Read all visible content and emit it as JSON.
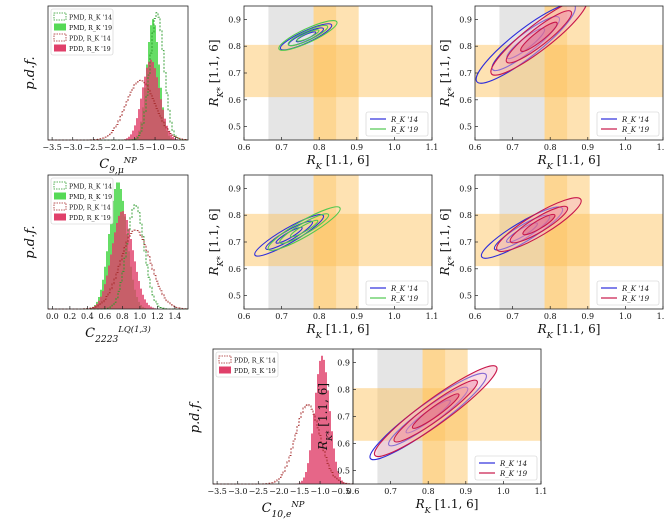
{
  "figure": {
    "hist_ylabel": "p.d.f.",
    "legend": {
      "pmd14": "PMD, R_K '14",
      "pmd19": "PMD, R_K '19",
      "pdd14": "PDD, R_K '14",
      "pdd19": "PDD, R_K '19",
      "rk14": "R_K '14",
      "rk19": "R_K '19"
    },
    "colors": {
      "pmd_green_fill": "#55d955",
      "pmd_green_line": "#2a9a2a",
      "pdd_red_fill": "#e0406a",
      "pdd_red_line": "#a52a2a",
      "contour_blue": "#2d2ddb",
      "contour_green": "#50c850",
      "contour_crimson": "#c8174a",
      "band_orange": "#fdbf55",
      "band_gray": "#cfcfcf"
    }
  },
  "chart_data": [
    {
      "type": "area",
      "xlabel": "C_{9,μ}^{NP}",
      "ylabel": "p.d.f.",
      "xticks": [
        "−3.5",
        "−3.0",
        "−2.5",
        "−2.0",
        "−1.5",
        "−1.0",
        "−0.5"
      ],
      "xlim": [
        -3.6,
        -0.2
      ],
      "series": [
        {
          "name": "PMD, R_K '14",
          "style": "dashed-step",
          "mean": -0.95,
          "sd": 0.17,
          "peak": 1.0
        },
        {
          "name": "PMD, R_K '19",
          "style": "filled",
          "mean": -1.05,
          "sd": 0.15,
          "peak": 0.95
        },
        {
          "name": "PDD, R_K '14",
          "style": "dashed-step",
          "mean": -1.35,
          "sd": 0.35,
          "peak": 0.47
        },
        {
          "name": "PDD, R_K '19",
          "style": "filled",
          "mean": -1.1,
          "sd": 0.21,
          "peak": 0.63
        }
      ]
    },
    {
      "type": "scatter",
      "xlabel": "R_K [1.1, 6]",
      "ylabel": "R_K* [1.1, 6]",
      "xlim": [
        0.6,
        1.1
      ],
      "ylim": [
        0.45,
        0.95
      ],
      "xticks": [
        "0.6",
        "0.7",
        "0.8",
        "0.9",
        "1.0",
        "1.1"
      ],
      "yticks": [
        "0.5",
        "0.6",
        "0.7",
        "0.8",
        "0.9"
      ],
      "legend": "bottom-right",
      "series": [
        {
          "name": "R_K '14",
          "cx": 0.765,
          "cy": 0.835,
          "a": 0.075,
          "b": 0.012,
          "angle_deg": 25
        },
        {
          "name": "R_K '19",
          "cx": 0.77,
          "cy": 0.84,
          "a": 0.085,
          "b": 0.014,
          "angle_deg": 25
        }
      ]
    },
    {
      "type": "scatter",
      "xlabel": "R_K [1.1, 6]",
      "ylabel": "R_K* [1.1, 6]",
      "xlim": [
        0.6,
        1.1
      ],
      "ylim": [
        0.45,
        0.95
      ],
      "xticks": [
        "0.6",
        "0.7",
        "0.8",
        "0.9",
        "1.0",
        "1.1"
      ],
      "yticks": [
        "0.5",
        "0.6",
        "0.7",
        "0.8",
        "0.9"
      ],
      "legend": "bottom-right",
      "series": [
        {
          "name": "R_K '14",
          "cx": 0.735,
          "cy": 0.81,
          "a": 0.165,
          "b": 0.028,
          "angle_deg": 38
        },
        {
          "name": "R_K '19",
          "cx": 0.77,
          "cy": 0.835,
          "a": 0.16,
          "b": 0.026,
          "angle_deg": 38
        }
      ]
    },
    {
      "type": "area",
      "xlabel": "C_{2223}^{LQ^{(1,3)}}",
      "ylabel": "p.d.f.",
      "xticks": [
        "0.0",
        "0.2",
        "0.4",
        "0.6",
        "0.8",
        "1.0",
        "1.2",
        "1.4"
      ],
      "xlim": [
        -0.05,
        1.55
      ],
      "series": [
        {
          "name": "PMD, R_K '14",
          "style": "dashed-step",
          "mean": 0.95,
          "sd": 0.1,
          "peak": 0.82
        },
        {
          "name": "PMD, R_K '19",
          "style": "filled",
          "mean": 0.75,
          "sd": 0.1,
          "peak": 1.0
        },
        {
          "name": "PDD, R_K '14",
          "style": "dashed-step",
          "mean": 0.95,
          "sd": 0.17,
          "peak": 0.62
        },
        {
          "name": "PDD, R_K '19",
          "style": "filled",
          "mean": 0.8,
          "sd": 0.12,
          "peak": 0.77
        }
      ]
    },
    {
      "type": "scatter",
      "xlabel": "R_K [1.1, 6]",
      "ylabel": "R_K* [1.1, 6]",
      "xlim": [
        0.6,
        1.1
      ],
      "ylim": [
        0.45,
        0.95
      ],
      "xticks": [
        "0.6",
        "0.7",
        "0.8",
        "0.9",
        "1.0",
        "1.1"
      ],
      "yticks": [
        "0.5",
        "0.6",
        "0.7",
        "0.8",
        "0.9"
      ],
      "legend": "bottom-right",
      "series": [
        {
          "name": "R_K '14",
          "cx": 0.72,
          "cy": 0.725,
          "a": 0.105,
          "b": 0.015,
          "angle_deg": 30
        },
        {
          "name": "R_K '19",
          "cx": 0.76,
          "cy": 0.75,
          "a": 0.11,
          "b": 0.016,
          "angle_deg": 30
        }
      ]
    },
    {
      "type": "scatter",
      "xlabel": "R_K [1.1, 6]",
      "ylabel": "R_K* [1.1, 6]",
      "xlim": [
        0.6,
        1.1
      ],
      "ylim": [
        0.45,
        0.95
      ],
      "xticks": [
        "0.6",
        "0.7",
        "0.8",
        "0.9",
        "1.0",
        "1.1"
      ],
      "yticks": [
        "0.5",
        "0.6",
        "0.7",
        "0.8",
        "0.9"
      ],
      "legend": "bottom-right",
      "series": [
        {
          "name": "R_K '14",
          "cx": 0.725,
          "cy": 0.735,
          "a": 0.125,
          "b": 0.02,
          "angle_deg": 31
        },
        {
          "name": "R_K '19",
          "cx": 0.77,
          "cy": 0.765,
          "a": 0.13,
          "b": 0.022,
          "angle_deg": 31
        }
      ]
    },
    {
      "type": "area",
      "xlabel": "C_{10,e}^{NP}",
      "ylabel": "p.d.f.",
      "xticks": [
        "−3.5",
        "−3.0",
        "−2.5",
        "−2.0",
        "−1.5",
        "−1.0",
        "−0.5"
      ],
      "xlim": [
        -3.6,
        -0.2
      ],
      "series": [
        {
          "name": "PDD, R_K '14",
          "style": "dashed-step",
          "mean": -1.3,
          "sd": 0.3,
          "peak": 0.62
        },
        {
          "name": "PDD, R_K '19",
          "style": "filled",
          "mean": -0.95,
          "sd": 0.18,
          "peak": 1.0
        }
      ]
    },
    {
      "type": "scatter",
      "xlabel": "R_K [1.1, 6]",
      "ylabel": "R_K* [1.1, 6]",
      "xlim": [
        0.6,
        1.1
      ],
      "ylim": [
        0.45,
        0.95
      ],
      "xticks": [
        "0.6",
        "0.7",
        "0.8",
        "0.9",
        "1.0",
        "1.1"
      ],
      "yticks": [
        "0.5",
        "0.6",
        "0.7",
        "0.8",
        "0.9"
      ],
      "legend": "bottom-right",
      "series": [
        {
          "name": "R_K '14",
          "cx": 0.8,
          "cy": 0.7,
          "a": 0.19,
          "b": 0.025,
          "angle_deg": 36
        },
        {
          "name": "R_K '19",
          "cx": 0.82,
          "cy": 0.72,
          "a": 0.2,
          "b": 0.026,
          "angle_deg": 36
        }
      ]
    }
  ],
  "bands": {
    "rk_gray": [
      0.665,
      0.785
    ],
    "rk_orange_outer": [
      0.785,
      0.905
    ],
    "rk_orange_inner": [
      0.785,
      0.845
    ],
    "rks_orange": [
      0.61,
      0.805
    ]
  }
}
